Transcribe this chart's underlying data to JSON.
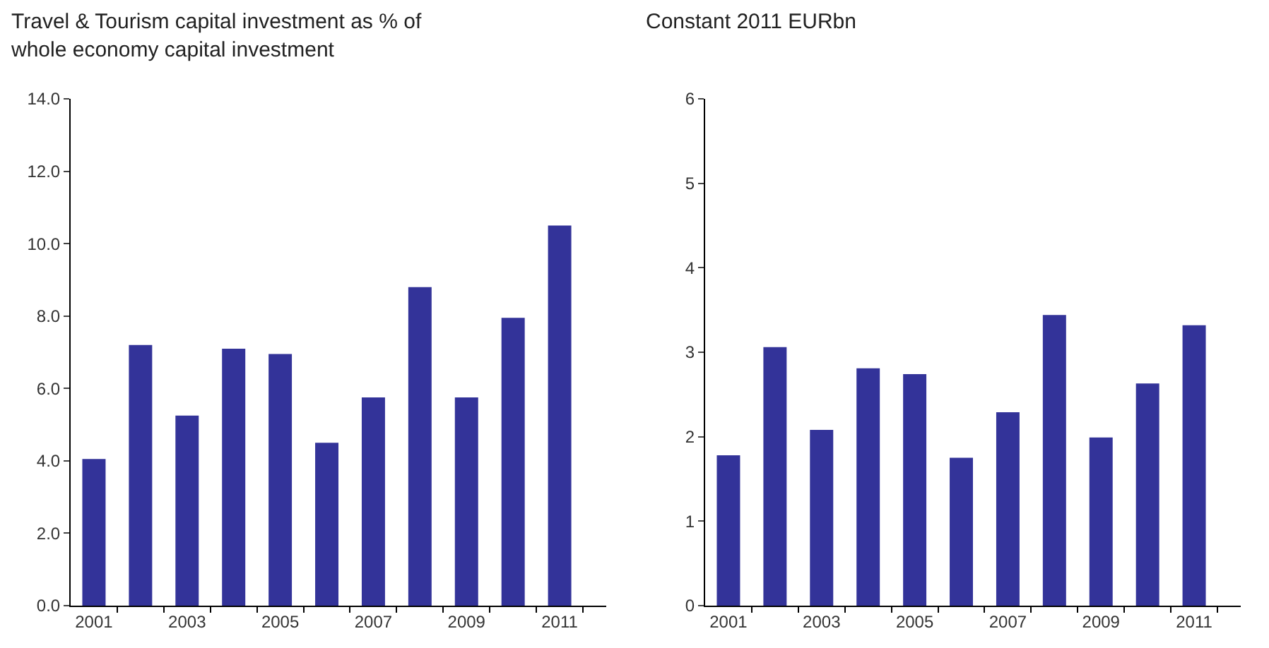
{
  "chart_data": [
    {
      "type": "bar",
      "title": "Travel & Tourism capital investment as % of whole economy capital investment",
      "categories": [
        "2001",
        null,
        "2003",
        null,
        "2005",
        null,
        "2007",
        null,
        "2009",
        null,
        "2011"
      ],
      "values": [
        4.05,
        7.2,
        5.25,
        7.1,
        6.95,
        4.5,
        5.75,
        8.8,
        5.75,
        7.95,
        10.5
      ],
      "color": "#333399",
      "ylim": [
        0,
        14
      ],
      "yticks": [
        {
          "value": 0,
          "label": "0.0"
        },
        {
          "value": 2,
          "label": "2.0"
        },
        {
          "value": 4,
          "label": "4.0"
        },
        {
          "value": 6,
          "label": "6.0"
        },
        {
          "value": 8,
          "label": "8.0"
        },
        {
          "value": 10,
          "label": "10.0"
        },
        {
          "value": 12,
          "label": "12.0"
        },
        {
          "value": 14,
          "label": "14.0"
        }
      ],
      "grid": false,
      "legend": false
    },
    {
      "type": "bar",
      "title": "Constant 2011 EURbn",
      "categories": [
        "2001",
        null,
        "2003",
        null,
        "2005",
        null,
        "2007",
        null,
        "2009",
        null,
        "2011"
      ],
      "values": [
        1.78,
        3.06,
        2.08,
        2.81,
        2.74,
        1.75,
        2.29,
        3.44,
        1.99,
        2.63,
        3.32
      ],
      "color": "#333399",
      "ylim": [
        0,
        6
      ],
      "yticks": [
        0,
        1,
        2,
        3,
        4,
        5,
        6
      ],
      "grid": false,
      "legend": false
    }
  ]
}
